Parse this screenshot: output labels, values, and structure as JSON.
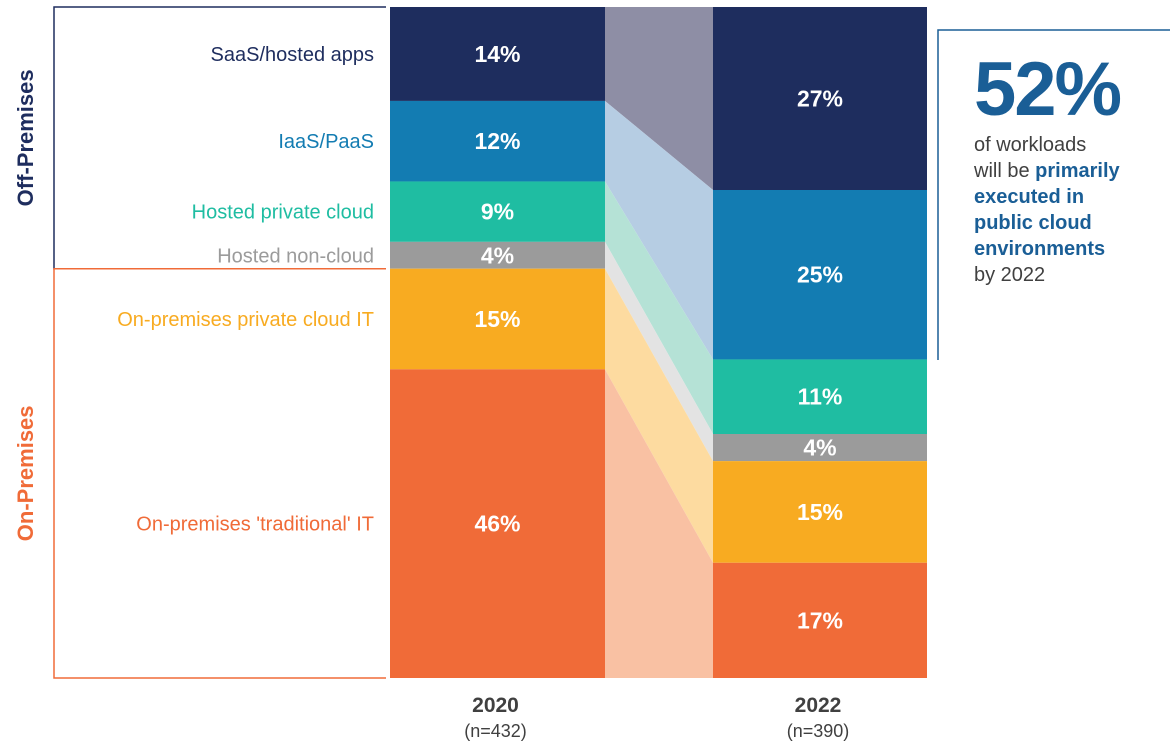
{
  "chart_data": {
    "type": "bar",
    "stacked": true,
    "categories": [
      "2020",
      "2022"
    ],
    "category_sublabels": [
      "(n=432)",
      "(n=390)"
    ],
    "series": [
      {
        "name": "SaaS/hosted apps",
        "values": [
          14,
          27
        ],
        "color": "#1e2d5e"
      },
      {
        "name": "IaaS/PaaS",
        "values": [
          12,
          25
        ],
        "color": "#137cb2"
      },
      {
        "name": "Hosted private cloud",
        "values": [
          9,
          11
        ],
        "color": "#1fbda2"
      },
      {
        "name": "Hosted non-cloud",
        "values": [
          4,
          4
        ],
        "color": "#9b9b9b"
      },
      {
        "name": "On-premises private cloud IT",
        "values": [
          15,
          15
        ],
        "color": "#f8ab21"
      },
      {
        "name": "On-premises 'traditional' IT",
        "values": [
          46,
          17
        ],
        "color": "#f06b38"
      }
    ],
    "label_colors": [
      "#1e2d5e",
      "#137cb2",
      "#1fbda2",
      "#9b9b9b",
      "#f8ab21",
      "#f06b38"
    ],
    "band_colors": [
      "#8e8ea5",
      "#b6cde3",
      "#b5e2d6",
      "#e3e3e3",
      "#fddba0",
      "#f9c1a3"
    ],
    "groups": [
      {
        "name": "Off-Premises",
        "color": "#1e2d5e",
        "series_count": 4
      },
      {
        "name": "On-Premises",
        "color": "#f06b38",
        "series_count": 2
      }
    ],
    "value_suffix": "%"
  },
  "callout": {
    "value": "52%",
    "line1": "of workloads",
    "line2_prefix": "will be ",
    "line2_bold": "primarily",
    "line3_bold": "executed in",
    "line4_bold": "public cloud",
    "line5_bold": "environments",
    "line6": "by 2022",
    "accent_color": "#1a5e96"
  }
}
